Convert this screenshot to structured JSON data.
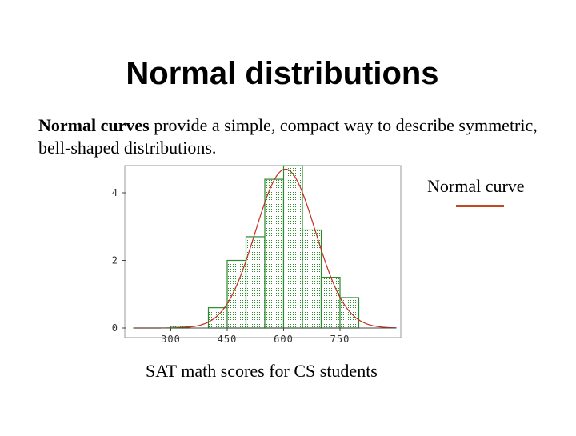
{
  "slide": {
    "title": "Normal distributions",
    "intro_bold": "Normal curves",
    "intro_rest": " provide a simple, compact way to describe symmetric, bell-shaped distributions."
  },
  "legend": {
    "curve_label": "Normal curve"
  },
  "colors": {
    "bar_fill": "#d9ecd9",
    "bar_stroke": "#2b8a2b",
    "curve": "#c0301e",
    "axis": "#444444",
    "legend_line": "#c24a1e"
  },
  "chart_data": {
    "type": "bar",
    "title": "",
    "xlabel": "SAT math scores for CS students",
    "ylabel": "",
    "xlim": [
      200,
      900
    ],
    "ylim": [
      0,
      4.7
    ],
    "x_ticks": [
      300,
      450,
      600,
      750
    ],
    "y_ticks": [
      0,
      2,
      4
    ],
    "bin_width": 50,
    "bins": [
      {
        "start": 300,
        "end": 350,
        "value": 0.05
      },
      {
        "start": 400,
        "end": 450,
        "value": 0.6
      },
      {
        "start": 450,
        "end": 500,
        "value": 2.0
      },
      {
        "start": 500,
        "end": 550,
        "value": 2.7
      },
      {
        "start": 550,
        "end": 600,
        "value": 4.4
      },
      {
        "start": 600,
        "end": 650,
        "value": 4.8
      },
      {
        "start": 650,
        "end": 700,
        "value": 2.9
      },
      {
        "start": 700,
        "end": 750,
        "value": 1.5
      },
      {
        "start": 750,
        "end": 800,
        "value": 0.9
      }
    ],
    "curve": {
      "mean": 605,
      "sd": 80,
      "peak": 4.7,
      "range": [
        200,
        900
      ]
    },
    "legend_position": "top-right"
  }
}
